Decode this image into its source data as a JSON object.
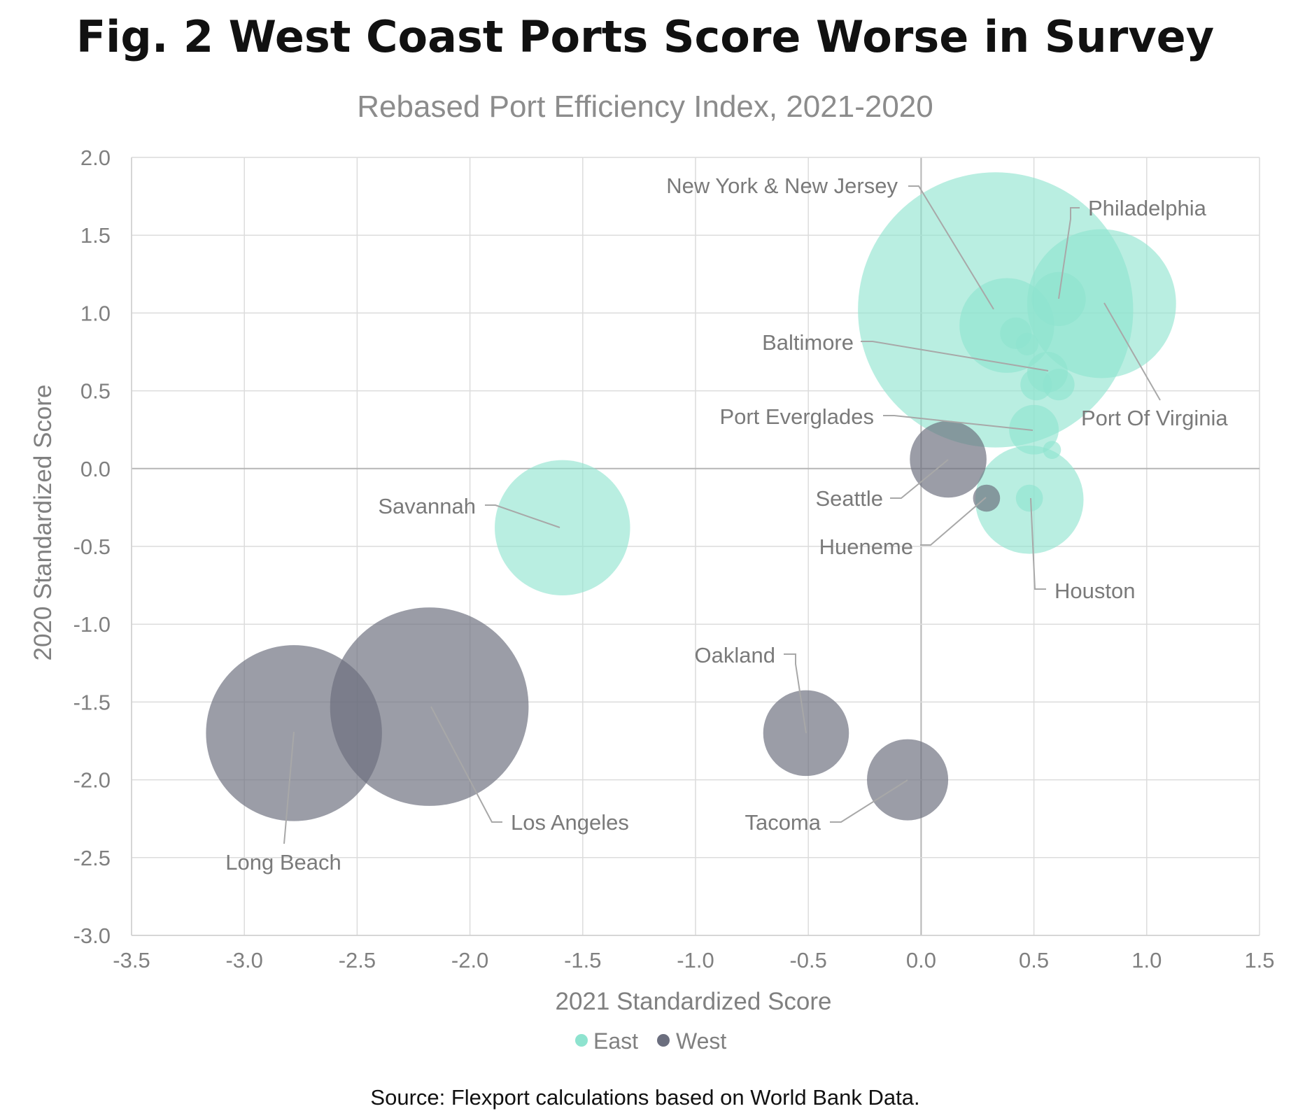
{
  "chart_data": {
    "type": "scatter",
    "title": "Fig. 2 West Coast Ports Score Worse in Survey",
    "subtitle": "Rebased Port Efficiency Index, 2021-2020",
    "xlabel": "2021 Standardized Score",
    "ylabel": "2020 Standardized Score",
    "xlim": [
      -3.5,
      1.5
    ],
    "ylim": [
      -3.0,
      2.0
    ],
    "x_ticks": [
      "-3.5",
      "-3.0",
      "-2.5",
      "-2.0",
      "-1.5",
      "-1.0",
      "-0.5",
      "0.0",
      "0.5",
      "1.0",
      "1.5"
    ],
    "y_ticks": [
      "2.0",
      "1.5",
      "1.0",
      "0.5",
      "0.0",
      "-0.5",
      "-1.0",
      "-1.5",
      "-2.0",
      "-2.5",
      "-3.0"
    ],
    "grid": true,
    "legend_position": "bottom-center",
    "source": "Source: Flexport calculations based on World Bank Data.",
    "colors": {
      "East": "#8ee3cf",
      "West": "#6b6e7e"
    },
    "series": [
      {
        "name": "East",
        "points": [
          {
            "label": "New York & New Jersey",
            "x": 0.33,
            "y": 1.02,
            "size": 0.61
          },
          {
            "label": "Philadelphia",
            "x": 0.61,
            "y": 1.09,
            "size": 0.12
          },
          {
            "label": "Port Of Virginia",
            "x": 0.8,
            "y": 1.06,
            "size": 0.33
          },
          {
            "label": "",
            "x": 0.38,
            "y": 0.92,
            "size": 0.21
          },
          {
            "label": "",
            "x": 0.42,
            "y": 0.87,
            "size": 0.07
          },
          {
            "label": "",
            "x": 0.47,
            "y": 0.8,
            "size": 0.05
          },
          {
            "label": "Baltimore",
            "x": 0.56,
            "y": 0.62,
            "size": 0.09
          },
          {
            "label": "",
            "x": 0.51,
            "y": 0.54,
            "size": 0.07
          },
          {
            "label": "",
            "x": 0.61,
            "y": 0.54,
            "size": 0.07
          },
          {
            "label": "Port Everglades",
            "x": 0.5,
            "y": 0.25,
            "size": 0.11
          },
          {
            "label": "",
            "x": 0.58,
            "y": 0.12,
            "size": 0.04
          },
          {
            "label": "Houston",
            "x": 0.48,
            "y": -0.2,
            "size": 0.24
          },
          {
            "label": "",
            "x": 0.48,
            "y": -0.19,
            "size": 0.06
          },
          {
            "label": "Savannah",
            "x": -1.59,
            "y": -0.38,
            "size": 0.3
          }
        ]
      },
      {
        "name": "West",
        "points": [
          {
            "label": "Seattle",
            "x": 0.12,
            "y": 0.06,
            "size": 0.17
          },
          {
            "label": "Hueneme",
            "x": 0.29,
            "y": -0.19,
            "size": 0.06
          },
          {
            "label": "Oakland",
            "x": -0.51,
            "y": -1.7,
            "size": 0.19
          },
          {
            "label": "Tacoma",
            "x": -0.06,
            "y": -2.0,
            "size": 0.18
          },
          {
            "label": "Los Angeles",
            "x": -2.18,
            "y": -1.53,
            "size": 0.44
          },
          {
            "label": "Long Beach",
            "x": -2.78,
            "y": -1.7,
            "size": 0.39
          }
        ]
      }
    ],
    "annotations": [
      {
        "text": "New York & New Jersey",
        "series": "East",
        "point": 0
      },
      {
        "text": "Philadelphia",
        "series": "East",
        "point": 1
      },
      {
        "text": "Port Of Virginia",
        "series": "East",
        "point": 2
      },
      {
        "text": "Baltimore",
        "series": "East",
        "point": 6
      },
      {
        "text": "Port Everglades",
        "series": "East",
        "point": 9
      },
      {
        "text": "Houston",
        "series": "East",
        "point": 11
      },
      {
        "text": "Savannah",
        "series": "East",
        "point": 13
      },
      {
        "text": "Seattle",
        "series": "West",
        "point": 0
      },
      {
        "text": "Hueneme",
        "series": "West",
        "point": 1
      },
      {
        "text": "Oakland",
        "series": "West",
        "point": 2
      },
      {
        "text": "Tacoma",
        "series": "West",
        "point": 3
      },
      {
        "text": "Los Angeles",
        "series": "West",
        "point": 4
      },
      {
        "text": "Long Beach",
        "series": "West",
        "point": 5
      }
    ]
  }
}
